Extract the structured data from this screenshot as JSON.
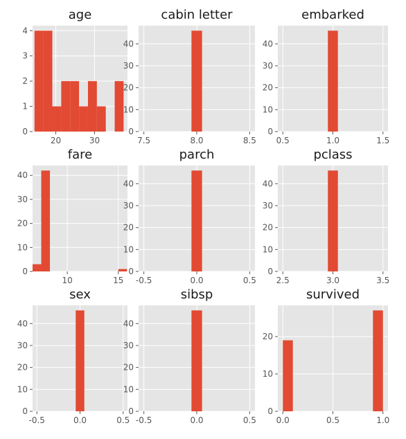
{
  "colors": {
    "bar": "#E24A33",
    "panel_bg": "#E5E5E5",
    "grid": "#FFFFFF",
    "tick_text": "#555555",
    "title_text": "#1A1A1A"
  },
  "chart_data": [
    {
      "type": "bar",
      "title": "age",
      "xlim": [
        14,
        38.5
      ],
      "ylim": [
        0,
        4.2
      ],
      "grid": true,
      "xticks": [
        20,
        30
      ],
      "xtick_labels": [
        "20",
        "30"
      ],
      "yticks": [
        0,
        1,
        2,
        3,
        4
      ],
      "ytick_labels": [
        "0",
        "1",
        "2",
        "3",
        "4"
      ],
      "bins": [
        [
          14.5,
          16.8
        ],
        [
          16.8,
          19.1
        ],
        [
          19.1,
          21.4
        ],
        [
          21.4,
          23.7
        ],
        [
          23.7,
          26.0
        ],
        [
          26.0,
          28.3
        ],
        [
          28.3,
          30.6
        ],
        [
          30.6,
          32.9
        ],
        [
          32.9,
          35.2
        ],
        [
          35.2,
          37.5
        ]
      ],
      "values": [
        4,
        4,
        1,
        2,
        2,
        1,
        2,
        1,
        0,
        2
      ]
    },
    {
      "type": "bar",
      "title": "cabin letter",
      "xlim": [
        7.45,
        8.55
      ],
      "ylim": [
        0,
        48.3
      ],
      "grid": true,
      "xticks": [
        7.5,
        8.0,
        8.5
      ],
      "xtick_labels": [
        "7.5",
        "8.0",
        "8.5"
      ],
      "yticks": [
        0,
        10,
        20,
        30,
        40
      ],
      "ytick_labels": [
        "0",
        "10",
        "20",
        "30",
        "40"
      ],
      "bins": [
        [
          7.95,
          8.05
        ]
      ],
      "values": [
        46
      ]
    },
    {
      "type": "bar",
      "title": "embarked",
      "xlim": [
        0.45,
        1.55
      ],
      "ylim": [
        0,
        48.3
      ],
      "grid": true,
      "xticks": [
        0.5,
        1.0,
        1.5
      ],
      "xtick_labels": [
        "0.5",
        "1.0",
        "1.5"
      ],
      "yticks": [
        0,
        10,
        20,
        30,
        40
      ],
      "ytick_labels": [
        "0",
        "10",
        "20",
        "30",
        "40"
      ],
      "bins": [
        [
          0.95,
          1.05
        ]
      ],
      "values": [
        46
      ]
    },
    {
      "type": "bar",
      "title": "fare",
      "xlim": [
        6.6,
        15.9
      ],
      "ylim": [
        0,
        44.1
      ],
      "grid": true,
      "xticks": [
        10,
        15
      ],
      "xtick_labels": [
        "10",
        "15"
      ],
      "yticks": [
        0,
        10,
        20,
        30,
        40
      ],
      "ytick_labels": [
        "0",
        "10",
        "20",
        "30",
        "40"
      ],
      "bins": [
        [
          6.6,
          7.45
        ],
        [
          7.45,
          8.3
        ],
        [
          15.0,
          15.85
        ]
      ],
      "values": [
        3,
        42,
        1
      ]
    },
    {
      "type": "bar",
      "title": "parch",
      "xlim": [
        -0.55,
        0.55
      ],
      "ylim": [
        0,
        48.3
      ],
      "grid": true,
      "xticks": [
        -0.5,
        0.0,
        0.5
      ],
      "xtick_labels": [
        "-0.5",
        "0.0",
        "0.5"
      ],
      "yticks": [
        0,
        10,
        20,
        30,
        40
      ],
      "ytick_labels": [
        "0",
        "10",
        "20",
        "30",
        "40"
      ],
      "bins": [
        [
          -0.05,
          0.05
        ]
      ],
      "values": [
        46
      ]
    },
    {
      "type": "bar",
      "title": "pclass",
      "xlim": [
        2.45,
        3.55
      ],
      "ylim": [
        0,
        48.3
      ],
      "grid": true,
      "xticks": [
        2.5,
        3.0,
        3.5
      ],
      "xtick_labels": [
        "2.5",
        "3.0",
        "3.5"
      ],
      "yticks": [
        0,
        10,
        20,
        30,
        40
      ],
      "ytick_labels": [
        "0",
        "10",
        "20",
        "30",
        "40"
      ],
      "bins": [
        [
          2.95,
          3.05
        ]
      ],
      "values": [
        46
      ]
    },
    {
      "type": "bar",
      "title": "sex",
      "xlim": [
        -0.55,
        0.55
      ],
      "ylim": [
        0,
        48.3
      ],
      "grid": true,
      "xticks": [
        -0.5,
        0.0,
        0.5
      ],
      "xtick_labels": [
        "-0.5",
        "0.0",
        "0.5"
      ],
      "yticks": [
        0,
        10,
        20,
        30,
        40
      ],
      "ytick_labels": [
        "0",
        "10",
        "20",
        "30",
        "40"
      ],
      "bins": [
        [
          -0.05,
          0.05
        ]
      ],
      "values": [
        46
      ]
    },
    {
      "type": "bar",
      "title": "sibsp",
      "xlim": [
        -0.55,
        0.55
      ],
      "ylim": [
        0,
        48.3
      ],
      "grid": true,
      "xticks": [
        -0.5,
        0.0,
        0.5
      ],
      "xtick_labels": [
        "-0.5",
        "0.0",
        "0.5"
      ],
      "yticks": [
        0,
        10,
        20,
        30,
        40
      ],
      "ytick_labels": [
        "0",
        "10",
        "20",
        "30",
        "40"
      ],
      "bins": [
        [
          -0.05,
          0.05
        ]
      ],
      "values": [
        46
      ]
    },
    {
      "type": "bar",
      "title": "survived",
      "xlim": [
        -0.05,
        1.05
      ],
      "ylim": [
        0,
        28.35
      ],
      "grid": true,
      "xticks": [
        0.0,
        0.5,
        1.0
      ],
      "xtick_labels": [
        "0.0",
        "0.5",
        "1.0"
      ],
      "yticks": [
        0,
        10,
        20
      ],
      "ytick_labels": [
        "0",
        "10",
        "20"
      ],
      "bins": [
        [
          0.0,
          0.1
        ],
        [
          0.9,
          1.0
        ]
      ],
      "values": [
        19,
        27
      ]
    }
  ]
}
